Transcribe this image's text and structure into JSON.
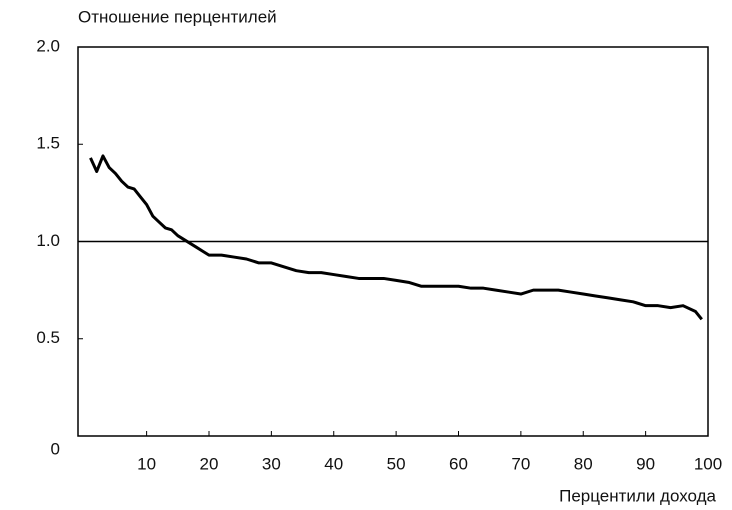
{
  "chart_data": {
    "type": "line",
    "title": "Отношение перцентилей",
    "x_label": "Перцентили дохода",
    "x": [
      1,
      2,
      3,
      4,
      5,
      6,
      7,
      8,
      9,
      10,
      11,
      12,
      13,
      14,
      15,
      16,
      17,
      18,
      19,
      20,
      22,
      24,
      26,
      28,
      30,
      32,
      34,
      36,
      38,
      40,
      42,
      44,
      46,
      48,
      50,
      52,
      54,
      56,
      58,
      60,
      62,
      64,
      66,
      68,
      70,
      72,
      74,
      76,
      78,
      80,
      82,
      84,
      86,
      88,
      90,
      92,
      94,
      96,
      98,
      99
    ],
    "values": [
      1.43,
      1.36,
      1.44,
      1.38,
      1.35,
      1.31,
      1.28,
      1.27,
      1.23,
      1.19,
      1.13,
      1.1,
      1.07,
      1.06,
      1.03,
      1.01,
      0.99,
      0.97,
      0.95,
      0.93,
      0.93,
      0.92,
      0.91,
      0.89,
      0.89,
      0.87,
      0.85,
      0.84,
      0.84,
      0.83,
      0.82,
      0.81,
      0.81,
      0.81,
      0.8,
      0.79,
      0.77,
      0.77,
      0.77,
      0.77,
      0.76,
      0.76,
      0.75,
      0.74,
      0.73,
      0.75,
      0.75,
      0.75,
      0.74,
      0.73,
      0.72,
      0.71,
      0.7,
      0.69,
      0.67,
      0.67,
      0.66,
      0.67,
      0.64,
      0.6
    ],
    "color": "#000000",
    "reference_line": 1,
    "xlim": [
      -1,
      100
    ],
    "xticks": [
      10,
      20,
      30,
      40,
      50,
      60,
      70,
      80,
      90,
      100
    ],
    "ylim": [
      0,
      2
    ],
    "yticks": [
      0,
      0.5,
      {
        "value": 1,
        "label": "1.0"
      },
      1.5,
      {
        "value": 2,
        "label": "2.0"
      }
    ],
    "grid": false
  }
}
